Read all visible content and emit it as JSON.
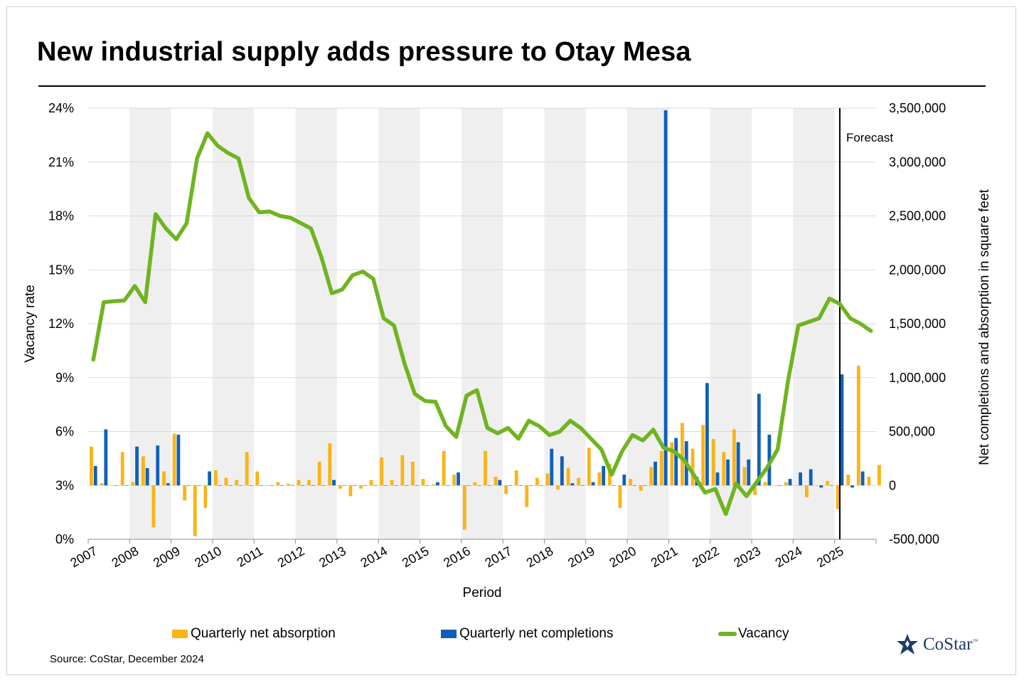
{
  "title": "New industrial supply adds pressure to Otay Mesa",
  "source": "Source: CoStar, December 2024",
  "logo": {
    "text": "CoStar",
    "tm": "™"
  },
  "colors": {
    "absorption": "#FBB316",
    "completions": "#1060B8",
    "vacancy": "#6FB421",
    "shade": "#EFEFEF",
    "grid": "#DADADA",
    "logo": "#1F3B6E"
  },
  "chart_data": {
    "type": "bar+line",
    "xlabel": "Period",
    "ylabel_left": "Vacancy rate",
    "ylabel_right": "Net completions and absorption in square feet",
    "left_axis": {
      "min": 0,
      "max": 24,
      "ticks": [
        0,
        3,
        6,
        9,
        12,
        15,
        18,
        21,
        24
      ],
      "tick_labels": [
        "0%",
        "3%",
        "6%",
        "9%",
        "12%",
        "15%",
        "18%",
        "21%",
        "24%"
      ]
    },
    "right_axis": {
      "min": -500000,
      "max": 3500000,
      "ticks": [
        -500000,
        0,
        500000,
        1000000,
        1500000,
        2000000,
        2500000,
        3000000,
        3500000
      ],
      "tick_labels": [
        "-500,000",
        "0",
        "500,000",
        "1,000,000",
        "1,500,000",
        "2,000,000",
        "2,500,000",
        "3,000,000",
        "3,500,000"
      ]
    },
    "years": [
      "2007",
      "2008",
      "2009",
      "2010",
      "2011",
      "2012",
      "2013",
      "2014",
      "2015",
      "2016",
      "2017",
      "2018",
      "2019",
      "2020",
      "2021",
      "2022",
      "2023",
      "2024",
      "2025"
    ],
    "quarters_per_year": 4,
    "forecast_label": "Forecast",
    "forecast_start_quarter_index": 72,
    "series": [
      {
        "name": "Quarterly net absorption",
        "kind": "bar",
        "axis": "right",
        "values": [
          360000,
          20000,
          0,
          310000,
          30000,
          270000,
          -390000,
          130000,
          480000,
          -140000,
          -470000,
          -210000,
          140000,
          70000,
          50000,
          310000,
          130000,
          0,
          30000,
          15000,
          50000,
          50000,
          220000,
          390000,
          -30000,
          -100000,
          -30000,
          50000,
          260000,
          50000,
          280000,
          220000,
          60000,
          10000,
          320000,
          100000,
          -410000,
          30000,
          320000,
          80000,
          -80000,
          140000,
          -200000,
          70000,
          110000,
          -40000,
          160000,
          70000,
          350000,
          120000,
          200000,
          -210000,
          60000,
          -50000,
          170000,
          320000,
          400000,
          580000,
          340000,
          560000,
          430000,
          310000,
          520000,
          170000,
          -90000,
          30000,
          0,
          30000,
          0,
          -110000,
          0,
          40000,
          -220000,
          100000,
          1110000,
          80000,
          190000
        ]
      },
      {
        "name": "Quarterly net completions",
        "kind": "bar",
        "axis": "right",
        "values": [
          180000,
          520000,
          0,
          0,
          360000,
          160000,
          370000,
          20000,
          470000,
          0,
          0,
          130000,
          0,
          0,
          0,
          0,
          0,
          0,
          0,
          0,
          0,
          0,
          0,
          50000,
          0,
          0,
          0,
          0,
          0,
          0,
          0,
          0,
          0,
          30000,
          0,
          120000,
          0,
          0,
          0,
          50000,
          0,
          0,
          0,
          0,
          340000,
          270000,
          20000,
          0,
          30000,
          180000,
          0,
          100000,
          0,
          0,
          220000,
          3480000,
          440000,
          410000,
          80000,
          950000,
          120000,
          240000,
          400000,
          240000,
          850000,
          470000,
          0,
          60000,
          120000,
          150000,
          -20000,
          0,
          1030000,
          -20000,
          130000
        ]
      },
      {
        "name": "Vacancy",
        "kind": "line",
        "axis": "left",
        "values": [
          10.0,
          13.2,
          13.25,
          13.3,
          14.1,
          13.2,
          18.1,
          17.3,
          16.7,
          17.6,
          21.2,
          22.6,
          21.9,
          21.5,
          21.2,
          19.0,
          18.2,
          18.25,
          18.0,
          17.9,
          17.6,
          17.3,
          15.7,
          13.7,
          13.9,
          14.7,
          14.9,
          14.5,
          12.3,
          11.9,
          9.8,
          8.1,
          7.7,
          7.65,
          6.3,
          5.7,
          8.0,
          8.3,
          6.2,
          5.9,
          6.2,
          5.6,
          6.6,
          6.3,
          5.8,
          6.0,
          6.6,
          6.2,
          5.6,
          5.0,
          3.6,
          4.9,
          5.8,
          5.5,
          6.1,
          5.1,
          4.9,
          4.4,
          3.5,
          2.6,
          2.8,
          1.4,
          3.1,
          2.4,
          3.2,
          4.0,
          5.0,
          8.8,
          11.9,
          12.1,
          12.3,
          13.4,
          13.1,
          12.3,
          12.0,
          11.6
        ]
      }
    ],
    "legend": [
      "Quarterly net absorption",
      "Quarterly net completions",
      "Vacancy"
    ],
    "legend_position": "bottom",
    "shaded_years": [
      "2008",
      "2010",
      "2012",
      "2014",
      "2016",
      "2018",
      "2020",
      "2022",
      "2024"
    ],
    "grid": true
  }
}
